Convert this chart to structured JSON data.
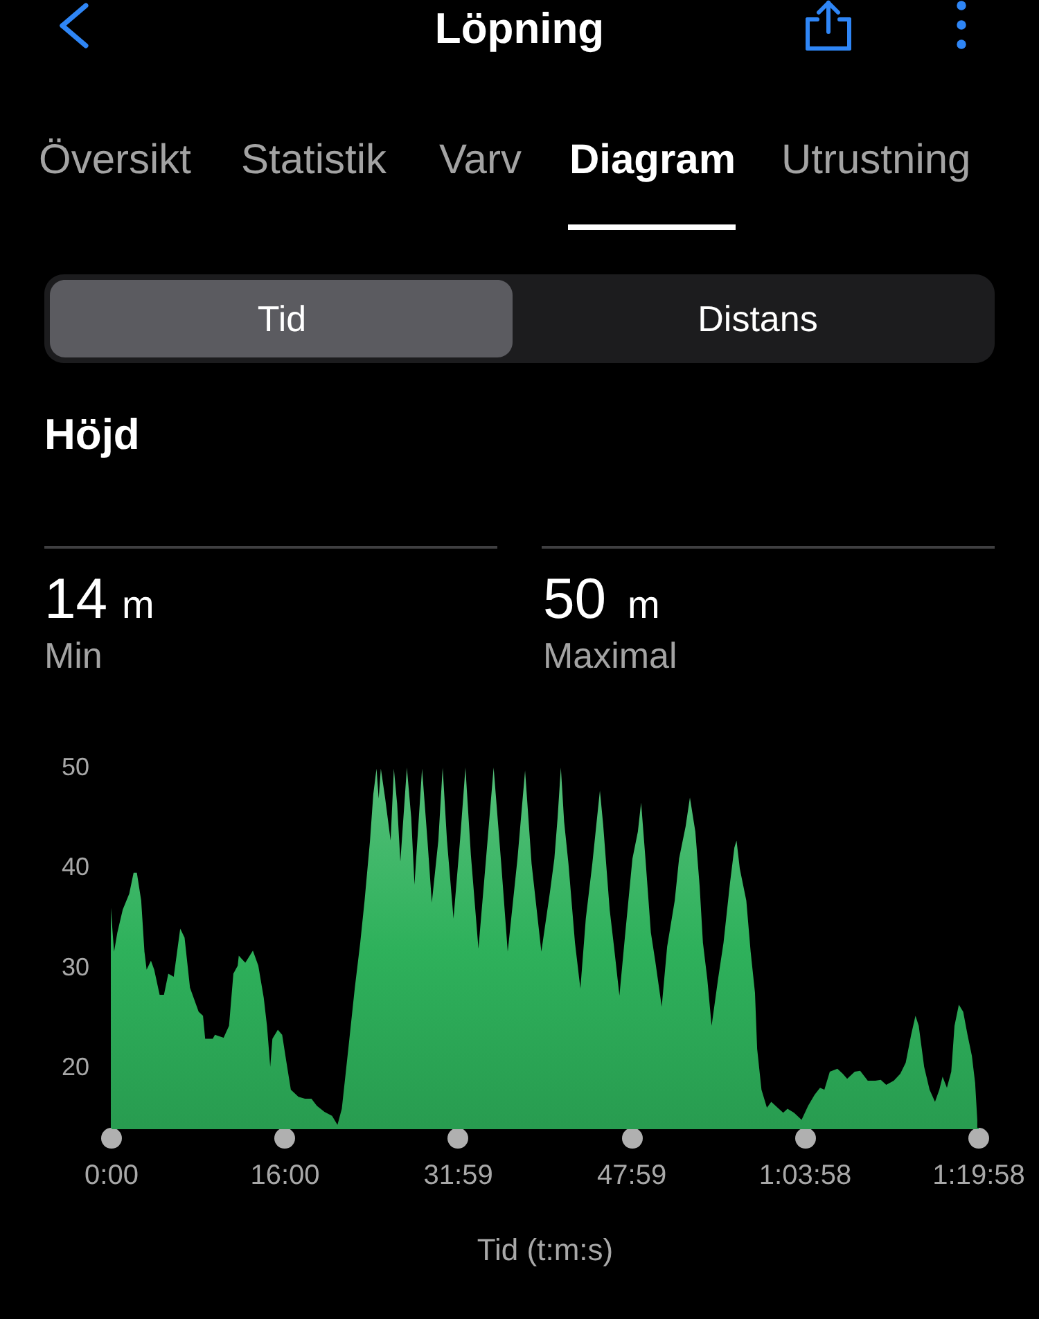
{
  "chart_data": {
    "type": "area",
    "title": "Höjd",
    "xlabel": "Tid (t:m:s)",
    "annotations": [
      "Löpning",
      "Översikt",
      "Statistik",
      "Varv",
      "Diagram",
      "Utrustning",
      "Tid",
      "Distans",
      "14",
      "m",
      "Min",
      "50",
      "m",
      "Maximal"
    ],
    "x": [
      0.0,
      0.2,
      0.3,
      0.6,
      1.1,
      1.7,
      2.1,
      2.4,
      2.8,
      3.1,
      3.3,
      3.7,
      4.0,
      4.5,
      4.9,
      5.3,
      5.8,
      6.4,
      6.8,
      7.3,
      8.1,
      8.5,
      8.7,
      9.4,
      9.6,
      10.4,
      10.9,
      11.3,
      11.7,
      11.8,
      12.4,
      13.1,
      13.6,
      14.1,
      14.4,
      14.7,
      14.9,
      15.4,
      15.8,
      16.2,
      16.6,
      17.3,
      17.9,
      18.5,
      19.0,
      19.7,
      20.4,
      20.9,
      21.3,
      21.9,
      22.5,
      23.0,
      23.4,
      23.9,
      24.2,
      24.5,
      24.7,
      24.9,
      25.3,
      25.8,
      26.1,
      26.4,
      26.7,
      27.3,
      27.7,
      28.0,
      28.7,
      29.2,
      29.6,
      30.2,
      30.6,
      31.0,
      31.6,
      32.2,
      32.7,
      33.2,
      33.9,
      34.6,
      35.3,
      36.0,
      36.6,
      37.5,
      38.2,
      38.8,
      39.7,
      40.5,
      40.9,
      41.2,
      41.5,
      41.8,
      42.2,
      42.8,
      43.3,
      43.8,
      44.4,
      44.8,
      45.1,
      45.4,
      46.0,
      46.4,
      46.9,
      47.4,
      48.1,
      48.6,
      48.9,
      49.3,
      49.8,
      50.2,
      50.8,
      51.3,
      52.0,
      52.4,
      53.0,
      53.4,
      53.9,
      54.3,
      54.6,
      55.0,
      55.4,
      56.0,
      56.5,
      57.1,
      57.5,
      57.7,
      58.0,
      58.6,
      59.0,
      59.4,
      59.6,
      60.0,
      60.5,
      60.9,
      61.3,
      62.0,
      62.4,
      63.0,
      63.7,
      64.3,
      64.9,
      65.4,
      65.8,
      66.3,
      67.0,
      67.5,
      67.9,
      68.6,
      69.1,
      69.8,
      70.5,
      71.0,
      71.5,
      72.2,
      72.8,
      73.3,
      73.8,
      74.2,
      74.5,
      75.0,
      75.5,
      76.0,
      76.4,
      76.7,
      77.1,
      77.5,
      77.8,
      78.2,
      78.6,
      79.0,
      79.4,
      79.7,
      79.9
    ],
    "values": [
      36.0,
      33.0,
      31.6,
      33.5,
      35.8,
      37.4,
      39.5,
      39.5,
      36.7,
      31.6,
      29.8,
      30.7,
      29.8,
      27.3,
      27.3,
      29.4,
      29.1,
      33.9,
      33.0,
      28.0,
      25.6,
      25.2,
      22.9,
      22.9,
      23.3,
      23.0,
      24.2,
      29.4,
      30.2,
      31.2,
      30.5,
      31.7,
      30.2,
      27.0,
      24.2,
      20.1,
      22.9,
      23.8,
      23.3,
      20.5,
      17.8,
      17.1,
      16.9,
      16.9,
      16.2,
      15.6,
      15.2,
      14.3,
      15.9,
      21.9,
      28.0,
      32.5,
      36.7,
      42.7,
      47.3,
      49.9,
      46.9,
      49.9,
      46.9,
      42.7,
      49.9,
      46.4,
      40.6,
      50.0,
      45.0,
      38.3,
      49.9,
      42.7,
      36.5,
      42.7,
      50.0,
      42.7,
      34.9,
      42.7,
      50.0,
      41.3,
      31.9,
      40.9,
      50.0,
      40.4,
      31.6,
      40.9,
      49.7,
      40.4,
      31.6,
      37.6,
      40.9,
      45.0,
      50.0,
      44.6,
      40.4,
      32.5,
      27.9,
      34.9,
      40.4,
      44.6,
      47.7,
      44.3,
      35.8,
      32.1,
      27.2,
      33.0,
      40.9,
      43.6,
      46.5,
      40.9,
      33.5,
      30.7,
      26.1,
      32.1,
      36.7,
      40.9,
      44.1,
      47.0,
      43.6,
      38.1,
      32.5,
      28.9,
      24.2,
      28.9,
      32.5,
      38.5,
      42.0,
      42.7,
      39.9,
      36.7,
      31.6,
      27.5,
      21.9,
      17.8,
      16.0,
      16.6,
      16.2,
      15.5,
      15.9,
      15.5,
      14.8,
      16.2,
      17.3,
      18.0,
      17.8,
      19.6,
      19.9,
      19.4,
      18.9,
      19.6,
      19.7,
      18.7,
      18.7,
      18.8,
      18.3,
      18.7,
      19.4,
      20.5,
      23.3,
      25.2,
      24.2,
      20.1,
      17.8,
      16.6,
      17.8,
      19.1,
      18.0,
      19.6,
      24.2,
      26.3,
      25.6,
      23.3,
      21.2,
      18.5,
      14.8
    ],
    "color": "#2eb15b",
    "xlim": [
      0,
      79.97
    ],
    "xticks": [
      {
        "value": 0,
        "label": "0:00"
      },
      {
        "value": 16.0,
        "label": "16:00"
      },
      {
        "value": 31.98,
        "label": "31:59"
      },
      {
        "value": 47.98,
        "label": "47:59"
      },
      {
        "value": 63.97,
        "label": "1:03:58"
      },
      {
        "value": 79.97,
        "label": "1:19:58"
      }
    ],
    "ylim": [
      14,
      50
    ],
    "yticks": [
      20,
      30,
      40,
      50
    ],
    "grid": false
  }
}
